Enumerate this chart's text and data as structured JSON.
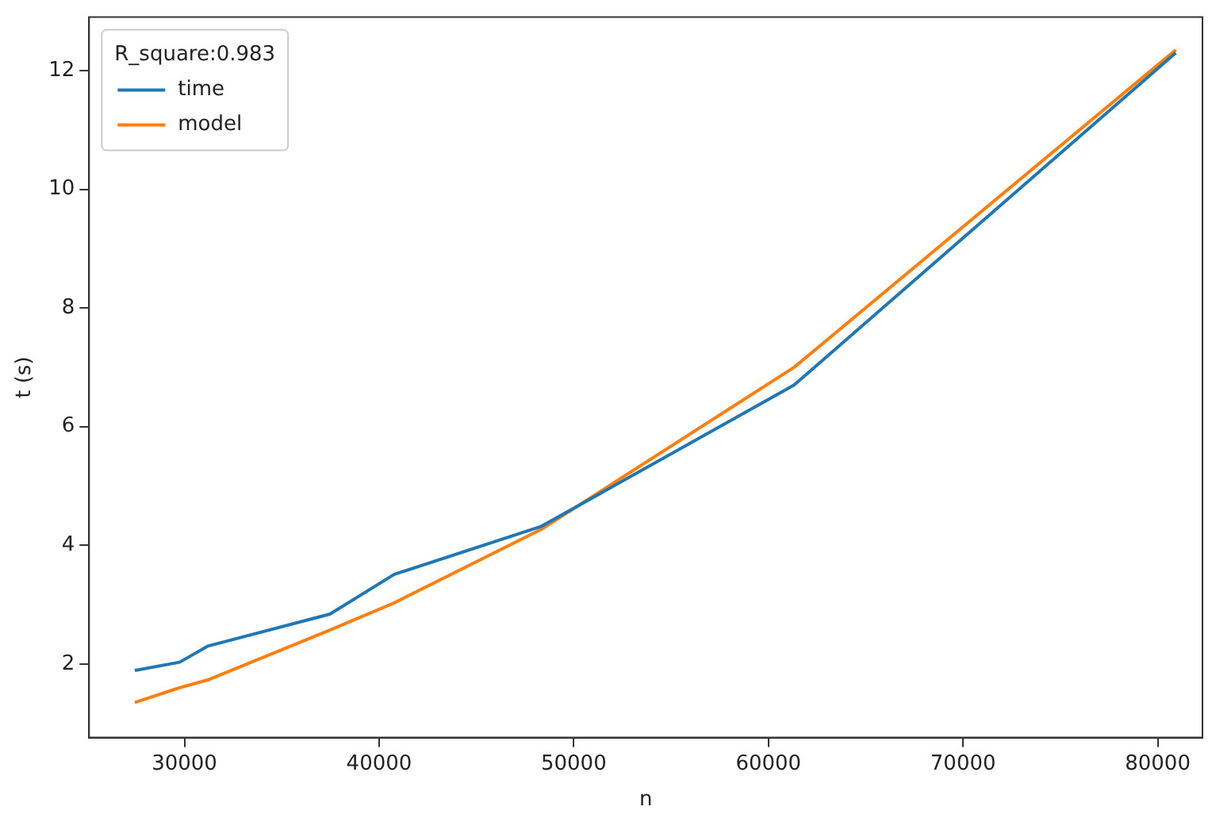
{
  "chart_data": {
    "type": "line",
    "xlabel": "n",
    "ylabel": "t (s)",
    "legend_title": "R_square:0.983",
    "legend": "top left",
    "grid": false,
    "marker": "none",
    "line_style": "solid",
    "xlim": [
      25100,
      82300
    ],
    "xticks": [
      30000,
      40000,
      50000,
      60000,
      70000,
      80000
    ],
    "ylim": [
      0.76,
      12.9
    ],
    "yticks": [
      2,
      4,
      6,
      8,
      10,
      12
    ],
    "x": [
      27450,
      29750,
      31190,
      37470,
      40780,
      48340,
      61320,
      80930
    ],
    "series": [
      {
        "name": "time",
        "color": "#1f77b4",
        "values": [
          1.89,
          2.03,
          2.3,
          2.84,
          3.51,
          4.32,
          6.7,
          12.3
        ]
      },
      {
        "name": "model",
        "color": "#ff7f0e",
        "values": [
          1.35,
          1.6,
          1.73,
          2.57,
          3.03,
          4.27,
          7.0,
          12.35
        ]
      }
    ]
  }
}
